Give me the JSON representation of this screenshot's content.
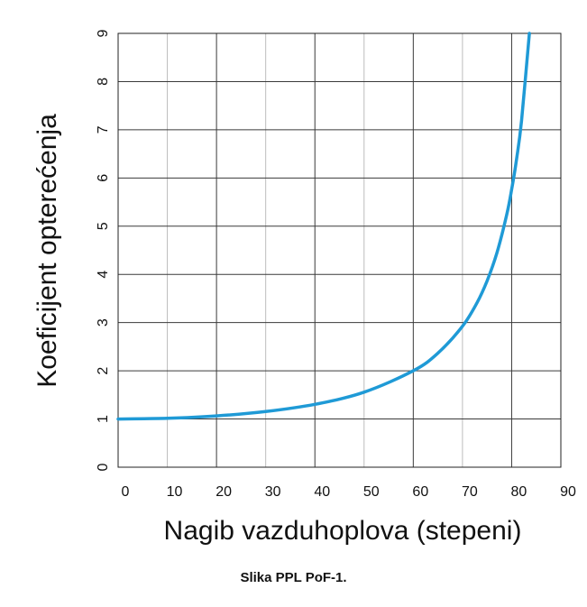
{
  "chart_data": {
    "type": "line",
    "xlabel": "Nagib vazduhoplova (stepeni)",
    "ylabel": "Koeficijent opterećenja",
    "xlim": [
      0,
      90
    ],
    "ylim": [
      0,
      9
    ],
    "x_ticks": [
      0,
      10,
      20,
      30,
      40,
      50,
      60,
      70,
      80,
      90
    ],
    "y_ticks": [
      0,
      1,
      2,
      3,
      4,
      5,
      6,
      7,
      8,
      9
    ],
    "grid": true,
    "series": [
      {
        "color": "#1f9ad6",
        "x": [
          0,
          10,
          20,
          30,
          40,
          50,
          60,
          65,
          70,
          73,
          75,
          77,
          79,
          80,
          81,
          82,
          83.6
        ],
        "y": [
          1.0,
          1.015,
          1.064,
          1.155,
          1.305,
          1.556,
          2.0,
          2.366,
          2.924,
          3.42,
          3.864,
          4.445,
          5.241,
          5.759,
          6.392,
          7.185,
          9.0
        ]
      }
    ]
  },
  "caption": "Slika PPL PoF-1."
}
